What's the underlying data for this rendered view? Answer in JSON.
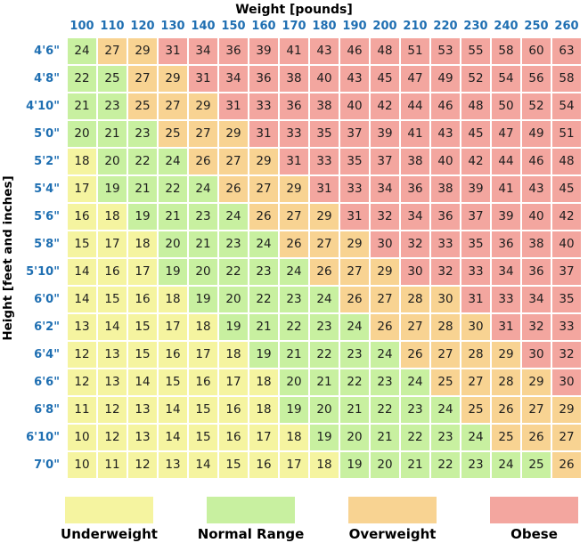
{
  "chart_data": {
    "type": "heatmap",
    "title": "Weight [pounds]",
    "ylabel": "Height [feet and inches]",
    "columns": [
      100,
      110,
      120,
      130,
      140,
      150,
      160,
      170,
      180,
      190,
      200,
      210,
      220,
      230,
      240,
      250,
      260
    ],
    "rows": [
      {
        "label": "4'6\"",
        "values": [
          24,
          27,
          29,
          31,
          34,
          36,
          39,
          41,
          43,
          46,
          48,
          51,
          53,
          55,
          58,
          60,
          63
        ],
        "cats": [
          "n",
          "o",
          "o",
          "b",
          "b",
          "b",
          "b",
          "b",
          "b",
          "b",
          "b",
          "b",
          "b",
          "b",
          "b",
          "b",
          "b"
        ]
      },
      {
        "label": "4'8\"",
        "values": [
          22,
          25,
          27,
          29,
          31,
          34,
          36,
          38,
          40,
          43,
          45,
          47,
          49,
          52,
          54,
          56,
          58
        ],
        "cats": [
          "n",
          "n",
          "o",
          "o",
          "b",
          "b",
          "b",
          "b",
          "b",
          "b",
          "b",
          "b",
          "b",
          "b",
          "b",
          "b",
          "b"
        ]
      },
      {
        "label": "4'10\"",
        "values": [
          21,
          23,
          25,
          27,
          29,
          31,
          33,
          36,
          38,
          40,
          42,
          44,
          46,
          48,
          50,
          52,
          54
        ],
        "cats": [
          "n",
          "n",
          "o",
          "o",
          "o",
          "b",
          "b",
          "b",
          "b",
          "b",
          "b",
          "b",
          "b",
          "b",
          "b",
          "b",
          "b"
        ]
      },
      {
        "label": "5'0\"",
        "values": [
          20,
          21,
          23,
          25,
          27,
          29,
          31,
          33,
          35,
          37,
          39,
          41,
          43,
          45,
          47,
          49,
          51
        ],
        "cats": [
          "n",
          "n",
          "n",
          "o",
          "o",
          "o",
          "b",
          "b",
          "b",
          "b",
          "b",
          "b",
          "b",
          "b",
          "b",
          "b",
          "b"
        ]
      },
      {
        "label": "5'2\"",
        "values": [
          18,
          20,
          22,
          24,
          26,
          27,
          29,
          31,
          33,
          35,
          37,
          38,
          40,
          42,
          44,
          46,
          48
        ],
        "cats": [
          "u",
          "n",
          "n",
          "n",
          "o",
          "o",
          "o",
          "b",
          "b",
          "b",
          "b",
          "b",
          "b",
          "b",
          "b",
          "b",
          "b"
        ]
      },
      {
        "label": "5'4\"",
        "values": [
          17,
          19,
          21,
          22,
          24,
          26,
          27,
          29,
          31,
          33,
          34,
          36,
          38,
          39,
          41,
          43,
          45
        ],
        "cats": [
          "u",
          "n",
          "n",
          "n",
          "n",
          "o",
          "o",
          "o",
          "b",
          "b",
          "b",
          "b",
          "b",
          "b",
          "b",
          "b",
          "b"
        ]
      },
      {
        "label": "5'6\"",
        "values": [
          16,
          18,
          19,
          21,
          23,
          24,
          26,
          27,
          29,
          31,
          32,
          34,
          36,
          37,
          39,
          40,
          42
        ],
        "cats": [
          "u",
          "u",
          "n",
          "n",
          "n",
          "n",
          "o",
          "o",
          "o",
          "b",
          "b",
          "b",
          "b",
          "b",
          "b",
          "b",
          "b"
        ]
      },
      {
        "label": "5'8\"",
        "values": [
          15,
          17,
          18,
          20,
          21,
          23,
          24,
          26,
          27,
          29,
          30,
          32,
          33,
          35,
          36,
          38,
          40
        ],
        "cats": [
          "u",
          "u",
          "u",
          "n",
          "n",
          "n",
          "n",
          "o",
          "o",
          "o",
          "b",
          "b",
          "b",
          "b",
          "b",
          "b",
          "b"
        ]
      },
      {
        "label": "5'10\"",
        "values": [
          14,
          16,
          17,
          19,
          20,
          22,
          23,
          24,
          26,
          27,
          29,
          30,
          32,
          33,
          34,
          36,
          37
        ],
        "cats": [
          "u",
          "u",
          "u",
          "n",
          "n",
          "n",
          "n",
          "n",
          "o",
          "o",
          "o",
          "b",
          "b",
          "b",
          "b",
          "b",
          "b"
        ]
      },
      {
        "label": "6'0\"",
        "values": [
          14,
          15,
          16,
          18,
          19,
          20,
          22,
          23,
          24,
          26,
          27,
          28,
          30,
          31,
          33,
          34,
          35
        ],
        "cats": [
          "u",
          "u",
          "u",
          "u",
          "n",
          "n",
          "n",
          "n",
          "n",
          "o",
          "o",
          "o",
          "o",
          "b",
          "b",
          "b",
          "b"
        ]
      },
      {
        "label": "6'2\"",
        "values": [
          13,
          14,
          15,
          17,
          18,
          19,
          21,
          22,
          23,
          24,
          26,
          27,
          28,
          30,
          31,
          32,
          33
        ],
        "cats": [
          "u",
          "u",
          "u",
          "u",
          "u",
          "n",
          "n",
          "n",
          "n",
          "n",
          "o",
          "o",
          "o",
          "o",
          "b",
          "b",
          "b"
        ]
      },
      {
        "label": "6'4\"",
        "values": [
          12,
          13,
          15,
          16,
          17,
          18,
          19,
          21,
          22,
          23,
          24,
          26,
          27,
          28,
          29,
          30,
          32
        ],
        "cats": [
          "u",
          "u",
          "u",
          "u",
          "u",
          "u",
          "n",
          "n",
          "n",
          "n",
          "n",
          "o",
          "o",
          "o",
          "o",
          "b",
          "b"
        ]
      },
      {
        "label": "6'6\"",
        "values": [
          12,
          13,
          14,
          15,
          16,
          17,
          18,
          20,
          21,
          22,
          23,
          24,
          25,
          27,
          28,
          29,
          30
        ],
        "cats": [
          "u",
          "u",
          "u",
          "u",
          "u",
          "u",
          "u",
          "n",
          "n",
          "n",
          "n",
          "n",
          "o",
          "o",
          "o",
          "o",
          "b"
        ]
      },
      {
        "label": "6'8\"",
        "values": [
          11,
          12,
          13,
          14,
          15,
          16,
          18,
          19,
          20,
          21,
          22,
          23,
          24,
          25,
          26,
          27,
          29
        ],
        "cats": [
          "u",
          "u",
          "u",
          "u",
          "u",
          "u",
          "u",
          "n",
          "n",
          "n",
          "n",
          "n",
          "n",
          "o",
          "o",
          "o",
          "o"
        ]
      },
      {
        "label": "6'10\"",
        "values": [
          10,
          12,
          13,
          14,
          15,
          16,
          17,
          18,
          19,
          20,
          21,
          22,
          23,
          24,
          25,
          26,
          27
        ],
        "cats": [
          "u",
          "u",
          "u",
          "u",
          "u",
          "u",
          "u",
          "u",
          "n",
          "n",
          "n",
          "n",
          "n",
          "n",
          "o",
          "o",
          "o"
        ]
      },
      {
        "label": "7'0\"",
        "values": [
          10,
          11,
          12,
          13,
          14,
          15,
          16,
          17,
          18,
          19,
          20,
          21,
          22,
          23,
          24,
          25,
          26
        ],
        "cats": [
          "u",
          "u",
          "u",
          "u",
          "u",
          "u",
          "u",
          "u",
          "u",
          "n",
          "n",
          "n",
          "n",
          "n",
          "n",
          "n",
          "o"
        ]
      }
    ],
    "legend": [
      {
        "label": "Underweight",
        "cat": "u"
      },
      {
        "label": "Normal Range",
        "cat": "n"
      },
      {
        "label": "Overweight",
        "cat": "o"
      },
      {
        "label": "Obese",
        "cat": "b"
      }
    ],
    "colors": {
      "u": "#f5f4a0",
      "n": "#c8f0a0",
      "o": "#f8d392",
      "b": "#f3a69f",
      "header_text": "#1f6fb2",
      "cell_text": "#1d1d1d"
    }
  }
}
